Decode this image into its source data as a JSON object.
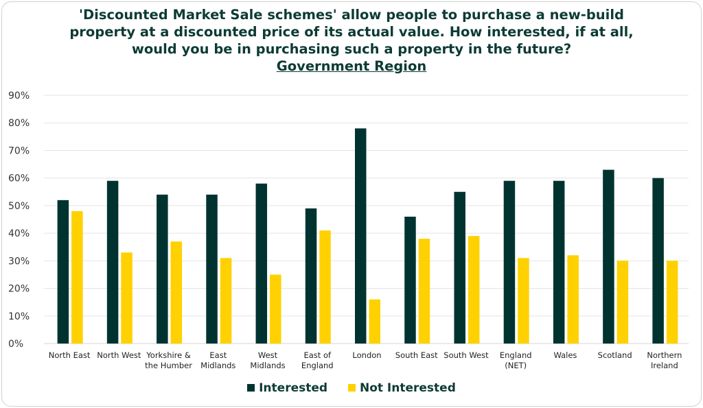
{
  "chart_data": {
    "type": "bar",
    "title": "'Discounted Market Sale schemes' allow people to purchase a new-build property at a discounted price of its actual value. How interested, if at all, would you be in purchasing such a property in the future?",
    "title_lines": [
      "'Discounted Market Sale schemes' allow people to purchase a new-build",
      "property at a discounted price of its actual value. How interested, if at all,",
      "would you be in purchasing such a property in the future?"
    ],
    "subtitle": "Government Region",
    "categories": [
      "North East",
      "North West",
      "Yorkshire & the Humber",
      "East Midlands",
      "West Midlands",
      "East of England",
      "London",
      "South East",
      "South West",
      "England (NET)",
      "Wales",
      "Scotland",
      "Northern Ireland"
    ],
    "category_lines": [
      [
        "North East"
      ],
      [
        "North West"
      ],
      [
        "Yorkshire &",
        "the Humber"
      ],
      [
        "East",
        "Midlands"
      ],
      [
        "West",
        "Midlands"
      ],
      [
        "East of",
        "England"
      ],
      [
        "London"
      ],
      [
        "South East"
      ],
      [
        "South West"
      ],
      [
        "England",
        "(NET)"
      ],
      [
        "Wales"
      ],
      [
        "Scotland"
      ],
      [
        "Northern",
        "Ireland"
      ]
    ],
    "series": [
      {
        "name": "Interested",
        "color": "#003330",
        "values": [
          52,
          59,
          54,
          54,
          58,
          49,
          78,
          46,
          55,
          59,
          59,
          63,
          60
        ]
      },
      {
        "name": "Not Interested",
        "color": "#ffd100",
        "values": [
          48,
          33,
          37,
          31,
          25,
          41,
          16,
          38,
          39,
          31,
          32,
          30,
          30
        ]
      }
    ],
    "yticks": [
      "0%",
      "10%",
      "20%",
      "30%",
      "40%",
      "50%",
      "60%",
      "70%",
      "80%",
      "90%"
    ],
    "ylim": [
      0,
      90
    ],
    "grid": true,
    "legend_position": "bottom",
    "xlabel": "",
    "ylabel": ""
  }
}
